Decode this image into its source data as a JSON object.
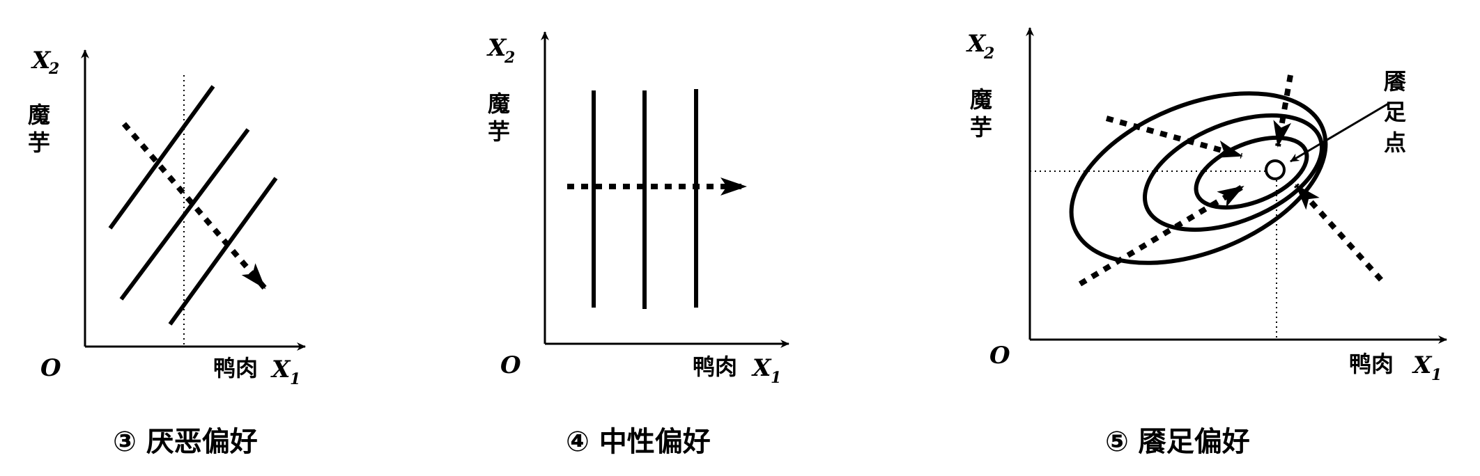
{
  "colors": {
    "ink": "#000000",
    "background": "#ffffff"
  },
  "panels": [
    {
      "id": "aversion",
      "caption": "③ 厌恶偏好",
      "origin": "O",
      "y_axis": {
        "symbol": "X",
        "subscript": "2",
        "label_line1": "魔",
        "label_line2": "芋"
      },
      "x_axis": {
        "label": "鸭肉",
        "symbol": "X",
        "subscript": "1"
      }
    },
    {
      "id": "neutral",
      "caption": "④ 中性偏好",
      "origin": "O",
      "y_axis": {
        "symbol": "X",
        "subscript": "2",
        "label_line1": "魔",
        "label_line2": "芋"
      },
      "x_axis": {
        "label": "鸭肉",
        "symbol": "X",
        "subscript": "1"
      }
    },
    {
      "id": "satiation",
      "caption": "⑤ 餍足偏好",
      "origin": "O",
      "y_axis": {
        "symbol": "X",
        "subscript": "2",
        "label_line1": "魔",
        "label_line2": "芋"
      },
      "x_axis": {
        "label": "鸭肉",
        "symbol": "X",
        "subscript": "1"
      },
      "bliss_point": {
        "line1": "餍",
        "line2": "足",
        "line3": "点"
      }
    }
  ]
}
